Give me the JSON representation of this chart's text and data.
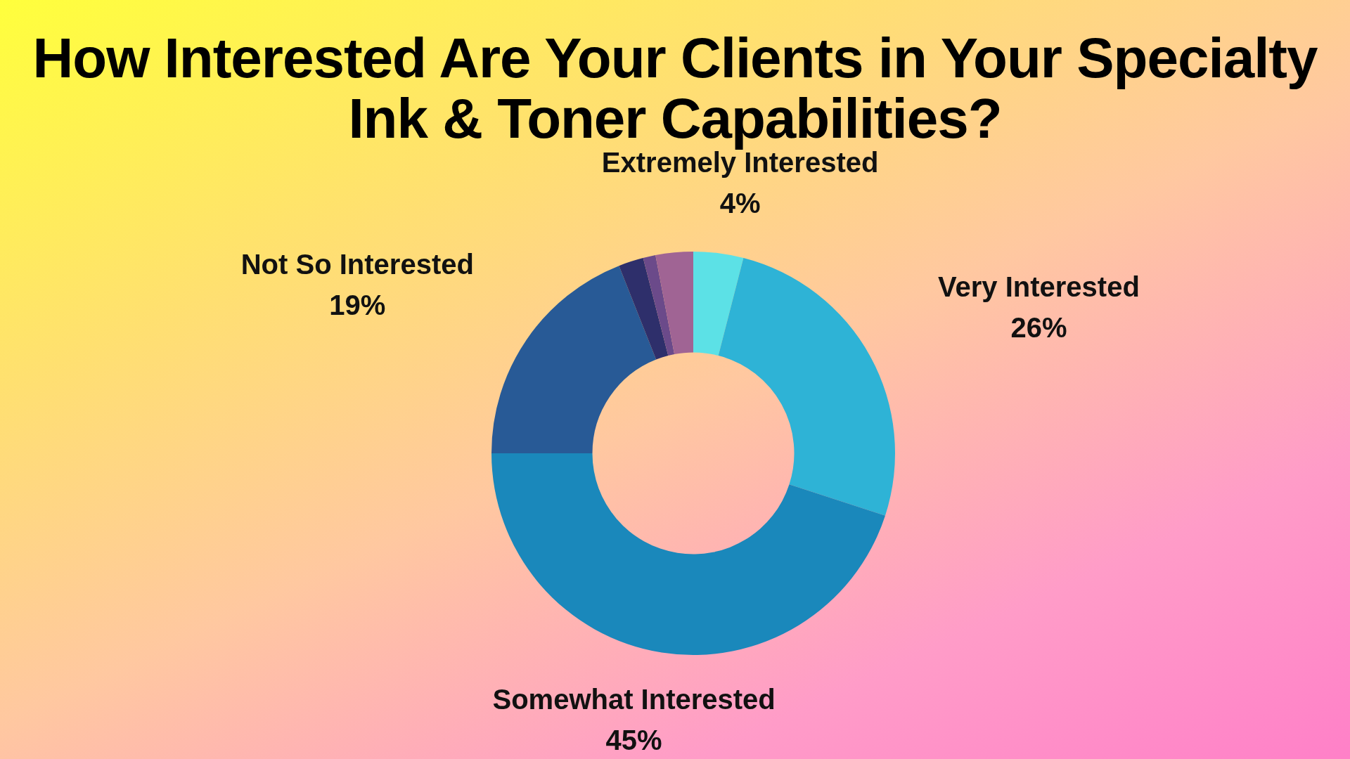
{
  "chart_data": {
    "type": "donut",
    "title": "How Interested Are Your Clients in Your Specialty Ink & Toner Capabilities?",
    "categories": [
      "Extremely Interested",
      "Very Interested",
      "Somewhat Interested",
      "Not So Interested",
      null,
      null,
      null
    ],
    "values": [
      4,
      26,
      45,
      19,
      2,
      1,
      3
    ],
    "colors": [
      "#5ce1e6",
      "#2eb3d6",
      "#1a88bb",
      "#285a96",
      "#2e2f6b",
      "#6b4a8a",
      "#a06494"
    ],
    "value_labels": [
      "4%",
      "26%",
      "45%",
      "19%",
      null,
      null,
      null
    ]
  }
}
